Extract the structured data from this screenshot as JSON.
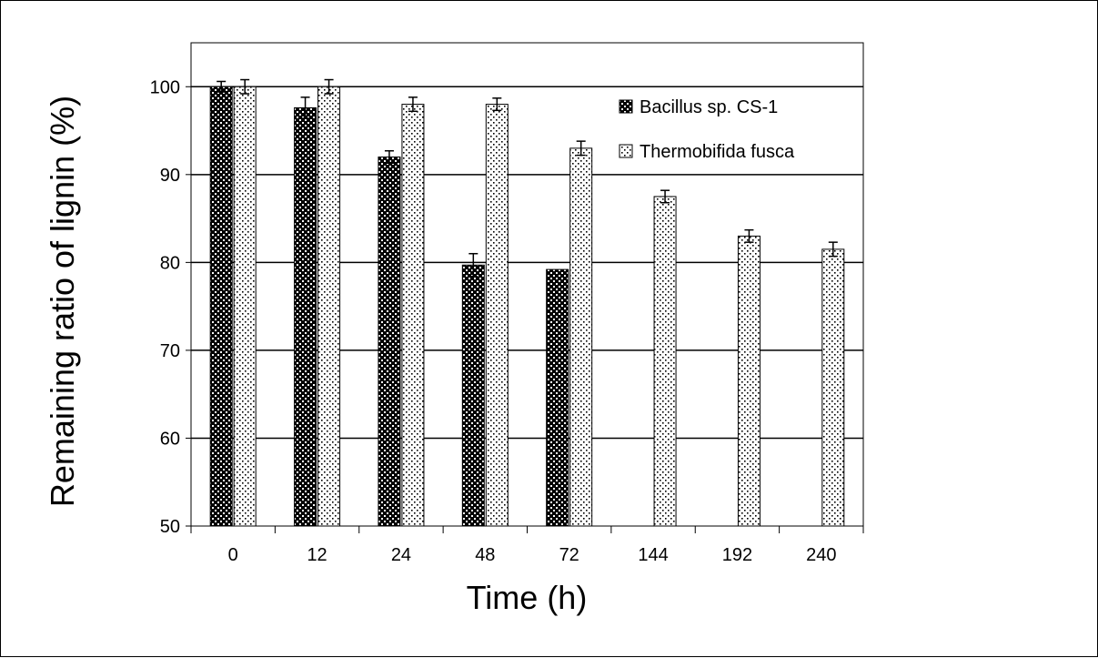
{
  "chart_data": {
    "type": "bar",
    "title": "",
    "xlabel": "Time (h)",
    "ylabel": "Remaining ratio of lignin (%)",
    "categories": [
      "0",
      "12",
      "24",
      "48",
      "72",
      "144",
      "192",
      "240"
    ],
    "ylim": [
      50,
      105
    ],
    "yticks": [
      50,
      60,
      70,
      80,
      90,
      100
    ],
    "grid": true,
    "legend_position": "top-right",
    "series": [
      {
        "name": "Bacillus sp. CS-1",
        "pattern": "dense-dots",
        "color": "#000000",
        "values": [
          100,
          97.6,
          92,
          79.7,
          79.2,
          null,
          null,
          null
        ],
        "errors": [
          0.6,
          1.2,
          0.7,
          1.3,
          0,
          null,
          null,
          null
        ]
      },
      {
        "name": "Thermobifida fusca",
        "pattern": "sparse-dots",
        "color": "#000000",
        "values": [
          100,
          100,
          98,
          98,
          93,
          87.5,
          83,
          81.5
        ],
        "errors": [
          0.8,
          0.8,
          0.8,
          0.7,
          0.8,
          0.7,
          0.7,
          0.8
        ]
      }
    ]
  }
}
